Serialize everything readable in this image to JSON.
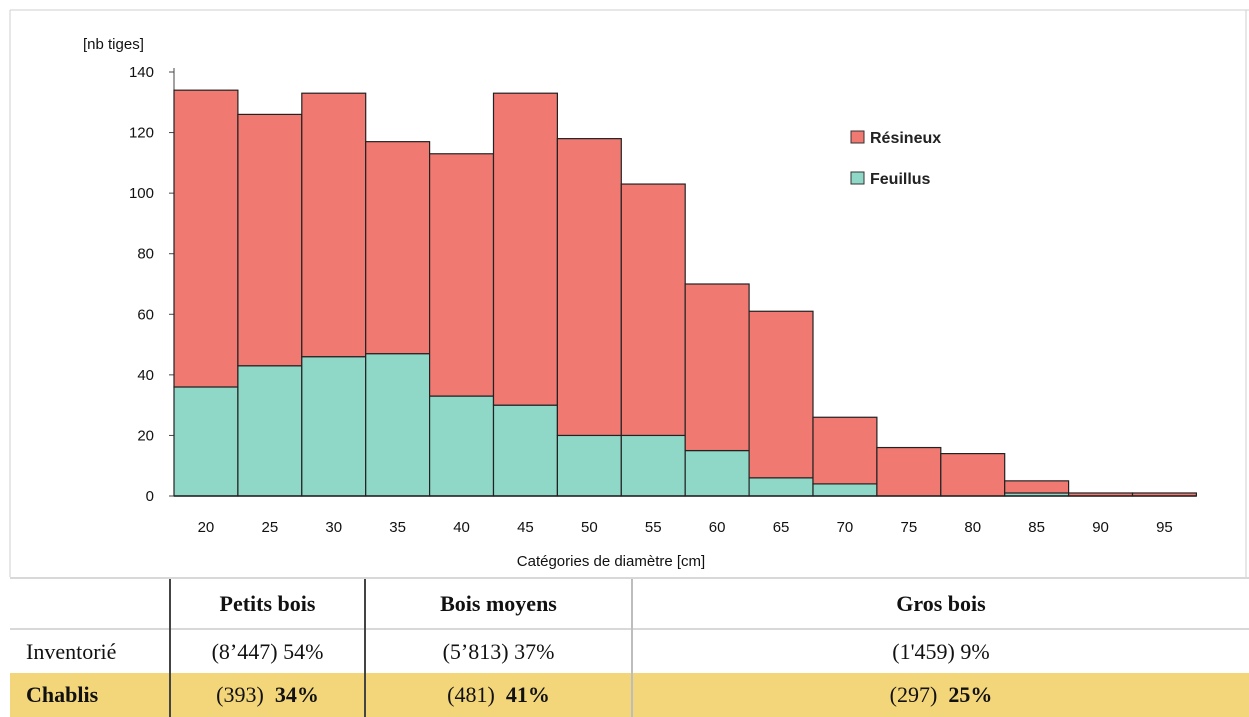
{
  "chart_data": {
    "type": "bar",
    "stacked": true,
    "ylabel": "[nb tiges]",
    "xlabel": "Catégories de diamètre [cm]",
    "ylim": [
      0,
      140
    ],
    "yticks": [
      "0",
      "20",
      "40",
      "60",
      "80",
      "100",
      "120",
      "140"
    ],
    "categories": [
      "20",
      "25",
      "30",
      "35",
      "40",
      "45",
      "50",
      "55",
      "60",
      "65",
      "70",
      "75",
      "80",
      "85",
      "90",
      "95"
    ],
    "series": [
      {
        "name": "Feuillus",
        "color": "#8fd8c8",
        "values": [
          36,
          43,
          46,
          47,
          33,
          30,
          20,
          20,
          15,
          6,
          4,
          0,
          0,
          1,
          0,
          0
        ]
      },
      {
        "name": "Résineux",
        "color": "#f07a72",
        "values": [
          98,
          83,
          87,
          70,
          80,
          103,
          98,
          83,
          55,
          55,
          22,
          16,
          14,
          4,
          1,
          1
        ]
      }
    ],
    "legend_order": [
      "Résineux",
      "Feuillus"
    ],
    "legend_position": "top-right"
  },
  "table": {
    "headers": [
      "",
      "Petits bois",
      "Bois moyens",
      "Gros bois"
    ],
    "inventorie": {
      "label": "Inventorié",
      "petits": "(8’447)  54%",
      "moyens": "(5’813)  37%",
      "gros": "(1'459)  9%"
    },
    "chablis": {
      "label": "Chablis",
      "petits_count": "(393)",
      "petits_pct": "34%",
      "moyens_count": "(481)",
      "moyens_pct": "41%",
      "gros_count": "(297)",
      "gros_pct": "25%"
    }
  }
}
